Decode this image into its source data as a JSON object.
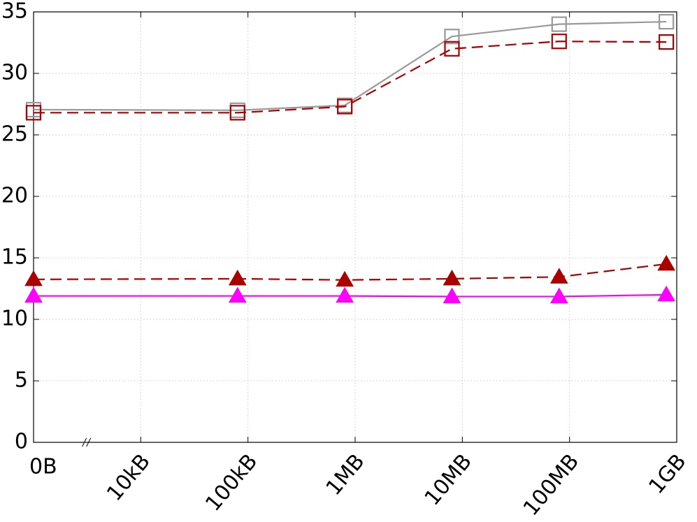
{
  "chart_data": {
    "type": "line",
    "xscale": "log",
    "x": [
      0,
      80000,
      800000,
      8000000,
      80000000,
      800000000
    ],
    "xlim": [
      0,
      1000000000
    ],
    "xticks": [
      {
        "value": 0,
        "label": "0B"
      },
      {
        "value": 10000,
        "label": "10kB"
      },
      {
        "value": 100000,
        "label": "100kB"
      },
      {
        "value": 1000000,
        "label": "1MB"
      },
      {
        "value": 10000000,
        "label": "10MB"
      },
      {
        "value": 100000000,
        "label": "100MB"
      },
      {
        "value": 1000000000,
        "label": "1GB"
      }
    ],
    "ylim": [
      0,
      35
    ],
    "yticks": [
      0,
      5,
      10,
      15,
      20,
      25,
      30,
      35
    ],
    "grid": true,
    "series": [
      {
        "color": "#999999",
        "marker": "square",
        "filled": false,
        "dashed": false,
        "values": [
          27.05,
          27.0,
          27.4,
          33.0,
          34.0,
          34.2
        ]
      },
      {
        "color": "#aa0000",
        "marker": "square",
        "filled": false,
        "dashed": true,
        "values": [
          26.8,
          26.8,
          27.3,
          32.0,
          32.6,
          32.55
        ]
      },
      {
        "color": "#aa0000",
        "marker": "triangle",
        "filled": true,
        "dashed": true,
        "values": [
          13.25,
          13.3,
          13.2,
          13.3,
          13.45,
          14.5
        ]
      },
      {
        "color": "#ff00ff",
        "marker": "triangle",
        "filled": true,
        "dashed": false,
        "values": [
          11.9,
          11.9,
          11.9,
          11.85,
          11.85,
          12.0
        ]
      }
    ]
  }
}
